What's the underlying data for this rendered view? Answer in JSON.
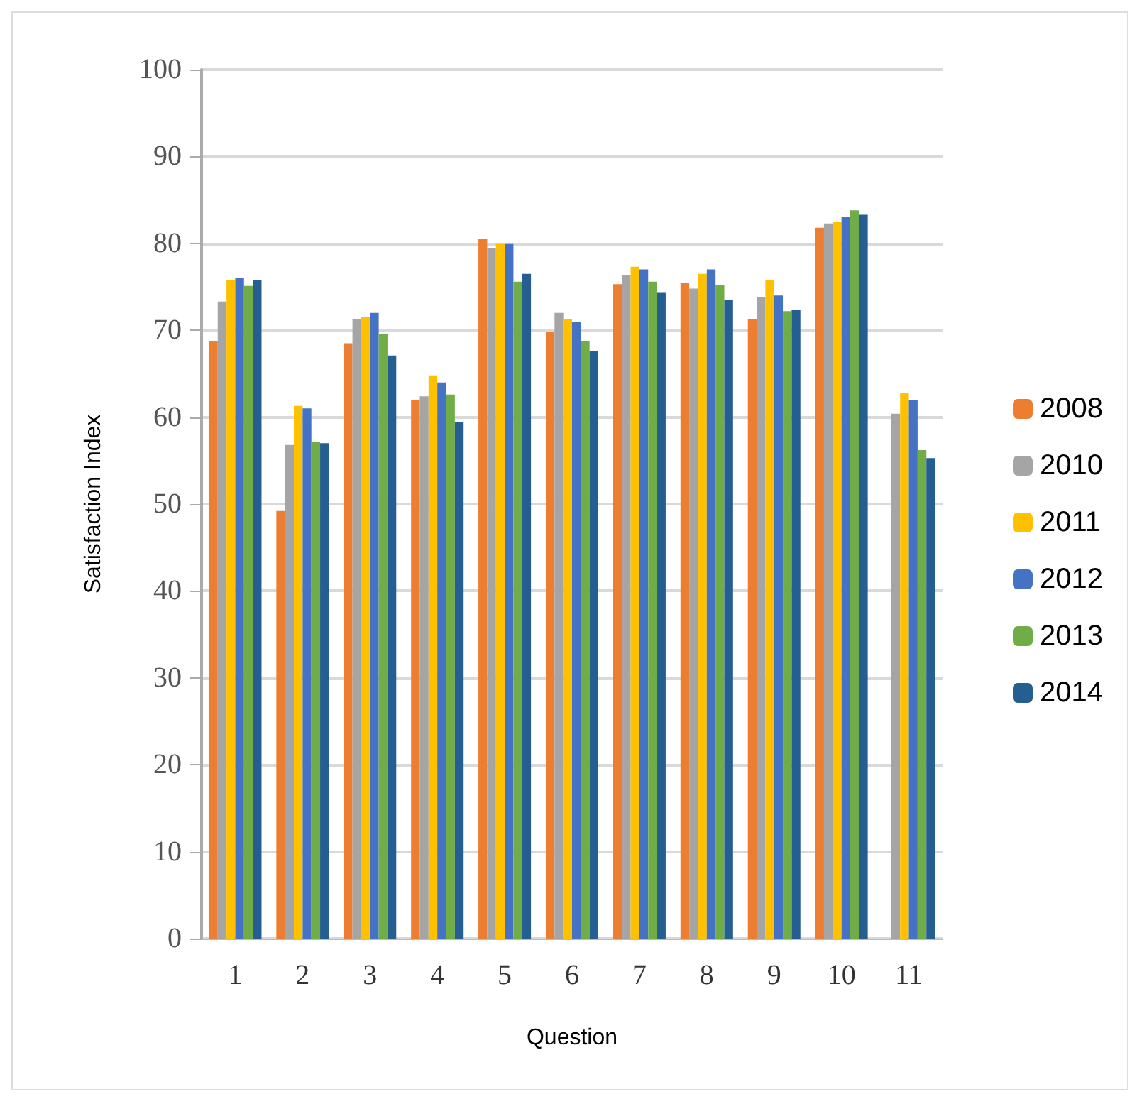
{
  "chart_data": {
    "type": "bar",
    "xlabel": "Question",
    "ylabel": "Satisfaction Index",
    "categories": [
      "1",
      "2",
      "3",
      "4",
      "5",
      "6",
      "7",
      "8",
      "9",
      "10",
      "11"
    ],
    "series": [
      {
        "name": "2008",
        "color": "#ed7d31",
        "values": [
          68.8,
          49.2,
          68.5,
          62,
          80.5,
          69.8,
          75.3,
          75.5,
          71.3,
          81.8,
          null
        ]
      },
      {
        "name": "2010",
        "color": "#a5a5a5",
        "values": [
          73.3,
          56.8,
          71.3,
          62.4,
          79.5,
          72,
          76.3,
          74.8,
          73.8,
          82.3,
          60.4
        ]
      },
      {
        "name": "2011",
        "color": "#ffc000",
        "values": [
          75.8,
          61.3,
          71.5,
          64.8,
          80,
          71.3,
          77.3,
          76.5,
          75.8,
          82.5,
          62.8
        ]
      },
      {
        "name": "2012",
        "color": "#4472c4",
        "values": [
          76,
          61,
          72,
          64,
          80,
          71,
          77,
          77,
          74,
          83,
          62
        ]
      },
      {
        "name": "2013",
        "color": "#70ad47",
        "values": [
          75.1,
          57.1,
          69.6,
          62.6,
          75.6,
          68.7,
          75.6,
          75.2,
          72.2,
          83.8,
          56.2
        ]
      },
      {
        "name": "2014",
        "color": "#255e91",
        "values": [
          75.8,
          57,
          67.1,
          59.4,
          76.5,
          67.6,
          74.3,
          73.5,
          72.3,
          83.3,
          55.3
        ]
      }
    ],
    "ylim": [
      0,
      100
    ],
    "yticks": [
      0,
      10,
      20,
      30,
      40,
      50,
      60,
      70,
      80,
      90,
      100
    ],
    "grid": "y",
    "legend": "right"
  }
}
